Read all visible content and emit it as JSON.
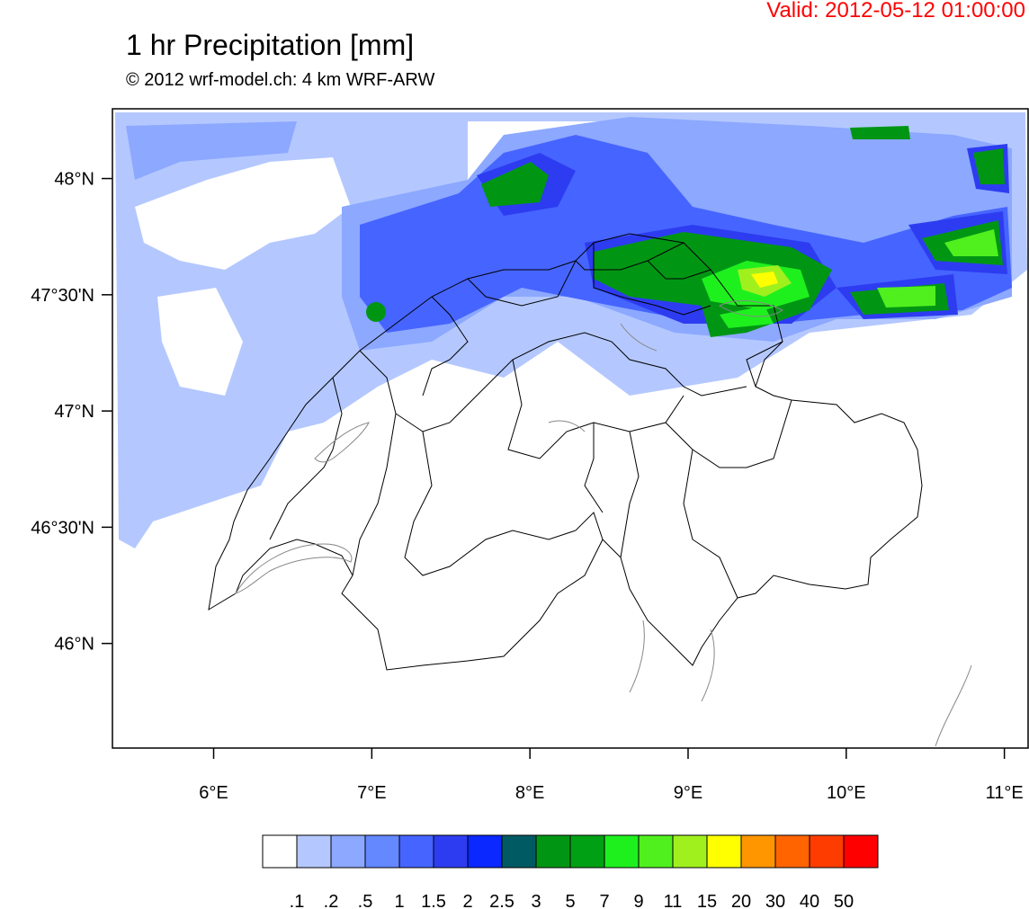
{
  "header": {
    "valid": "Valid: 2012-05-12 01:00:00",
    "title": "1 hr Precipitation [mm]",
    "subtitle": "© 2012 wrf-model.ch: 4 km WRF-ARW"
  },
  "axes": {
    "lat_labels": [
      {
        "lat": 48.0,
        "label": "48°N"
      },
      {
        "lat": 47.5,
        "label": "47°30'N"
      },
      {
        "lat": 47.0,
        "label": "47°N"
      },
      {
        "lat": 46.5,
        "label": "46°30'N"
      },
      {
        "lat": 46.0,
        "label": "46°N"
      }
    ],
    "lon_labels": [
      {
        "lon": 6,
        "label": "6°E"
      },
      {
        "lon": 7,
        "label": "7°E"
      },
      {
        "lon": 8,
        "label": "8°E"
      },
      {
        "lon": 9,
        "label": "9°E"
      },
      {
        "lon": 10,
        "label": "10°E"
      },
      {
        "lon": 11,
        "label": "11°E"
      }
    ],
    "lon_range": [
      5.36,
      11.15
    ],
    "lat_range": [
      45.55,
      48.3
    ]
  },
  "colorbar": {
    "colors": [
      "#ffffff",
      "#b4c8ff",
      "#8ca8ff",
      "#6488ff",
      "#4664ff",
      "#2d3cf0",
      "#0a28ff",
      "#005a64",
      "#009614",
      "#00a014",
      "#1ef01e",
      "#50f01e",
      "#a0f01e",
      "#ffff00",
      "#ff9600",
      "#ff6400",
      "#ff3c00",
      "#ff0000"
    ],
    "labels": [
      ".1",
      ".2",
      ".5",
      "1",
      "1.5",
      "2",
      "2.5",
      "3",
      "5",
      "7",
      "9",
      "11",
      "15",
      "20",
      "30",
      "40",
      "50"
    ]
  },
  "precip_colors": {
    "light": "#b4c8ff",
    "medium": "#8ca8ff",
    "moderate": "#6488ff",
    "strong": "#2d3cf0",
    "deep_green": "#009614",
    "green": "#1ef01e",
    "lime": "#a0f01e",
    "yellow": "#ffff00"
  }
}
